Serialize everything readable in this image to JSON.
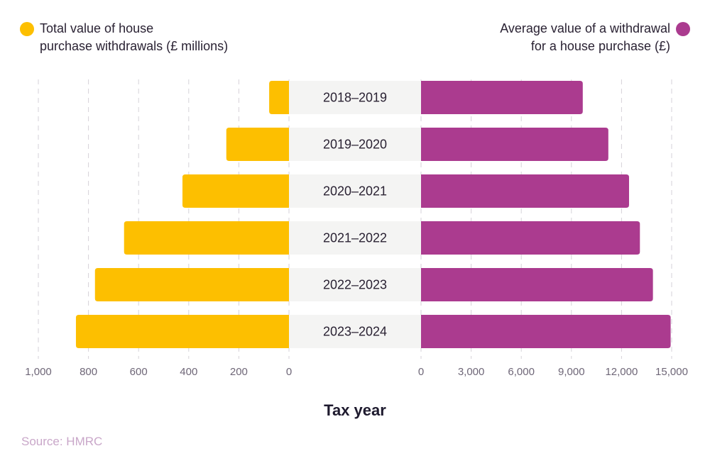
{
  "colors": {
    "left": "#fdbf00",
    "right": "#ab3b8f",
    "band": "#f4f4f3",
    "grid": "#d6d2d8"
  },
  "chart_data": [
    {
      "type": "bar",
      "orientation": "horizontal",
      "direction": "leftward",
      "categories": [
        "2018–2019",
        "2019–2020",
        "2020–2021",
        "2021–2022",
        "2022–2023",
        "2023–2024"
      ],
      "series": [
        {
          "name": "Total value of house purchase withdrawals (£ millions)",
          "values": [
            79,
            250,
            425,
            658,
            774,
            850
          ]
        }
      ],
      "xlim": [
        0,
        1000
      ],
      "ticks": [
        "1,000",
        "800",
        "600",
        "400",
        "200",
        "0"
      ],
      "tick_values": [
        1000,
        800,
        600,
        400,
        200,
        0
      ],
      "grid": true,
      "legend": "top-left"
    },
    {
      "type": "bar",
      "orientation": "horizontal",
      "direction": "rightward",
      "categories": [
        "2018–2019",
        "2019–2020",
        "2020–2021",
        "2021–2022",
        "2022–2023",
        "2023–2024"
      ],
      "series": [
        {
          "name": "Average value of a withdrawal for a house purchase (£)",
          "values": [
            9680,
            11210,
            12450,
            13100,
            13880,
            14940
          ]
        }
      ],
      "xlim": [
        0,
        15000
      ],
      "ticks": [
        "0",
        "3,000",
        "6,000",
        "9,000",
        "12,000",
        "15,000"
      ],
      "tick_values": [
        0,
        3000,
        6000,
        9000,
        12000,
        15000
      ],
      "grid": true,
      "legend": "top-right"
    }
  ],
  "legend": {
    "left_line1": "Total value of house",
    "left_line2": "purchase withdrawals (£ millions)",
    "right_line1": "Average value of a withdrawal",
    "right_line2": "for a house purchase (£)"
  },
  "xlabel": "Tax year",
  "source": "Source: HMRC"
}
